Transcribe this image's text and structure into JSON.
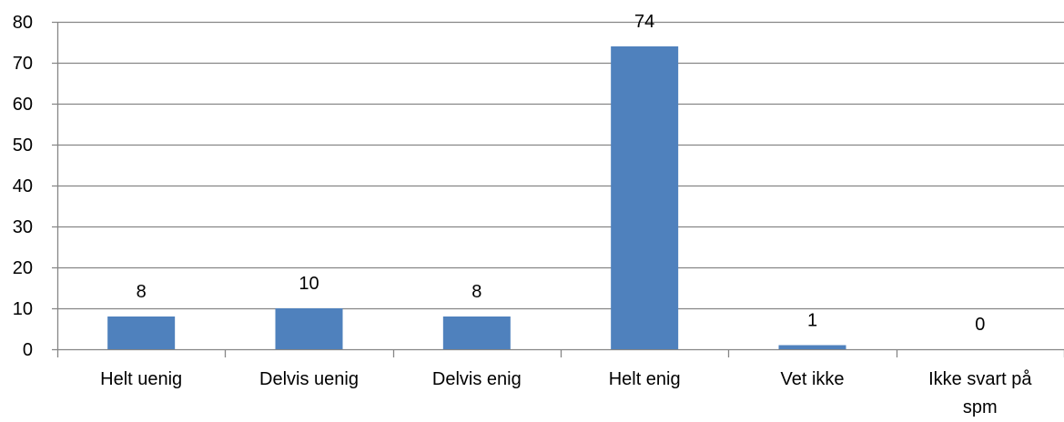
{
  "chart_data": {
    "type": "bar",
    "title": "",
    "xlabel": "",
    "ylabel": "",
    "categories": [
      [
        "Helt uenig"
      ],
      [
        "Delvis uenig"
      ],
      [
        "Delvis enig"
      ],
      [
        "Helt enig"
      ],
      [
        "Vet ikke"
      ],
      [
        "Ikke svart på",
        "spm"
      ]
    ],
    "values": [
      8,
      10,
      8,
      74,
      1,
      0
    ],
    "ylim": [
      0,
      80
    ],
    "yticks": [
      0,
      10,
      20,
      30,
      40,
      50,
      60,
      70,
      80
    ],
    "grid": true,
    "legend": "none",
    "bar_color": "#4F81BD",
    "grid_color": "#868686"
  }
}
